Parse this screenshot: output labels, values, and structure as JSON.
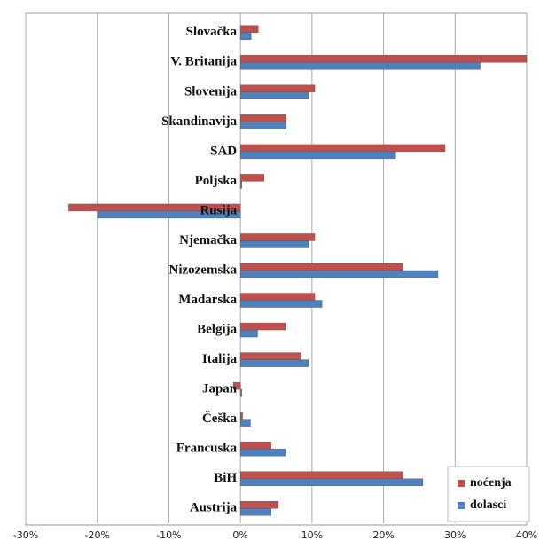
{
  "chart_data": {
    "type": "hbar",
    "categories": [
      "Slovačka",
      "V. Britanija",
      "Slovenija",
      "Skandinavija",
      "SAD",
      "Poljska",
      "Rusija",
      "Njemačka",
      "Nizozemska",
      "Madarska",
      "Belgija",
      "Italija",
      "Japan",
      "Češka",
      "Francuska",
      "BiH",
      "Austrija"
    ],
    "series": [
      {
        "name": "noćenja",
        "color": "#c0504d",
        "values": [
          2.5,
          40,
          10.4,
          6.4,
          28.6,
          3.3,
          -24,
          10.4,
          22.7,
          10.4,
          6.3,
          8.5,
          -1,
          0.3,
          4.3,
          22.7,
          5.3
        ]
      },
      {
        "name": "dolasci",
        "color": "#4f81bd",
        "values": [
          1.5,
          33.5,
          9.5,
          6.4,
          21.7,
          0.2,
          -20,
          9.5,
          27.6,
          11.4,
          2.4,
          9.5,
          0.2,
          1.4,
          6.3,
          25.5,
          4.3
        ]
      }
    ],
    "xlim": [
      -30,
      40
    ],
    "xticks": [
      {
        "value": -30,
        "label": "-30%"
      },
      {
        "value": -20,
        "label": "-20%"
      },
      {
        "value": -10,
        "label": "-10%"
      },
      {
        "value": 0,
        "label": "0%"
      },
      {
        "value": 10,
        "label": "10%"
      },
      {
        "value": 20,
        "label": "20%"
      },
      {
        "value": 30,
        "label": "30%"
      },
      {
        "value": 40,
        "label": "40%"
      }
    ],
    "grid": true,
    "legend": "bottom-right"
  }
}
